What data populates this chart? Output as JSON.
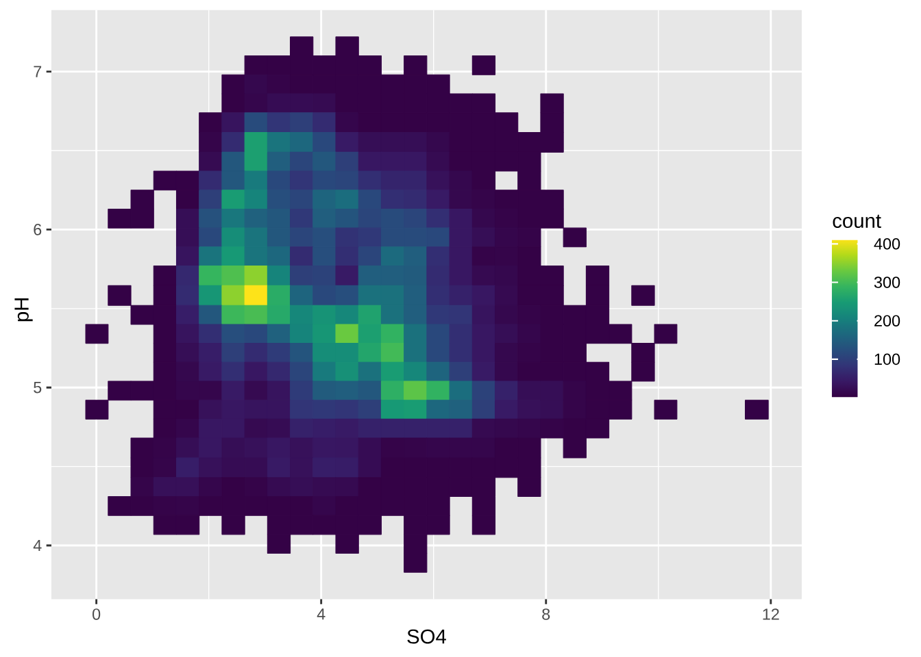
{
  "chart_data": {
    "type": "heatmap",
    "xlabel": "SO4",
    "ylabel": "pH",
    "clabel": "count",
    "x": [
      0.01,
      0.41,
      0.82,
      1.22,
      1.63,
      2.03,
      2.44,
      2.84,
      3.25,
      3.65,
      4.06,
      4.46,
      4.87,
      5.27,
      5.68,
      6.08,
      6.49,
      6.89,
      7.3,
      7.7,
      8.11,
      8.51,
      8.92,
      9.32,
      9.73,
      10.13,
      10.53,
      10.94,
      11.34,
      11.75
    ],
    "y": [
      7.16,
      7.04,
      6.92,
      6.8,
      6.68,
      6.55,
      6.43,
      6.31,
      6.19,
      6.07,
      5.95,
      5.83,
      5.71,
      5.58,
      5.46,
      5.34,
      5.22,
      5.1,
      4.98,
      4.86,
      4.74,
      4.62,
      4.49,
      4.37,
      4.25,
      4.13,
      4.01,
      3.89
    ],
    "cells": [
      [
        null,
        null,
        null,
        null,
        null,
        null,
        null,
        null,
        null,
        5,
        null,
        5,
        null,
        null,
        null,
        null,
        null,
        null,
        null,
        null,
        null,
        null,
        null,
        null,
        null,
        null,
        null,
        null,
        null,
        null
      ],
      [
        null,
        null,
        null,
        null,
        null,
        null,
        null,
        5,
        5,
        5,
        5,
        5,
        5,
        null,
        5,
        null,
        null,
        5,
        null,
        null,
        null,
        null,
        null,
        null,
        null,
        null,
        null,
        null,
        null,
        null
      ],
      [
        null,
        null,
        null,
        null,
        null,
        null,
        5,
        15,
        8,
        5,
        5,
        5,
        5,
        5,
        5,
        5,
        null,
        null,
        null,
        null,
        null,
        null,
        null,
        null,
        null,
        null,
        null,
        null,
        null,
        null
      ],
      [
        null,
        null,
        null,
        null,
        null,
        null,
        5,
        12,
        22,
        22,
        20,
        5,
        5,
        5,
        5,
        5,
        5,
        5,
        null,
        null,
        5,
        null,
        null,
        null,
        null,
        null,
        null,
        null,
        null,
        null
      ],
      [
        null,
        null,
        null,
        null,
        null,
        5,
        35,
        120,
        85,
        100,
        70,
        12,
        5,
        5,
        5,
        5,
        5,
        5,
        5,
        null,
        5,
        null,
        null,
        null,
        null,
        null,
        null,
        null,
        null,
        null
      ],
      [
        null,
        null,
        null,
        null,
        null,
        10,
        70,
        255,
        185,
        165,
        115,
        45,
        25,
        25,
        25,
        15,
        5,
        5,
        5,
        5,
        5,
        null,
        null,
        null,
        null,
        null,
        null,
        null,
        null,
        null
      ],
      [
        null,
        null,
        null,
        null,
        null,
        20,
        140,
        255,
        150,
        110,
        140,
        100,
        40,
        40,
        40,
        20,
        5,
        5,
        5,
        5,
        null,
        null,
        null,
        null,
        null,
        null,
        null,
        null,
        null,
        null
      ],
      [
        null,
        null,
        null,
        5,
        5,
        70,
        140,
        195,
        115,
        85,
        115,
        110,
        75,
        60,
        60,
        30,
        15,
        5,
        null,
        5,
        null,
        null,
        null,
        null,
        null,
        null,
        null,
        null,
        null,
        null
      ],
      [
        null,
        null,
        5,
        null,
        5,
        100,
        250,
        210,
        125,
        110,
        160,
        175,
        115,
        75,
        70,
        45,
        15,
        10,
        5,
        5,
        5,
        null,
        null,
        null,
        null,
        null,
        null,
        null,
        null,
        null
      ],
      [
        null,
        5,
        5,
        null,
        25,
        130,
        190,
        155,
        140,
        90,
        150,
        135,
        110,
        120,
        110,
        75,
        40,
        15,
        8,
        5,
        5,
        null,
        null,
        null,
        null,
        null,
        null,
        null,
        null,
        null
      ],
      [
        null,
        null,
        null,
        null,
        25,
        115,
        225,
        185,
        140,
        110,
        125,
        80,
        90,
        120,
        120,
        115,
        40,
        25,
        12,
        8,
        null,
        5,
        null,
        null,
        null,
        null,
        null,
        null,
        null,
        null
      ],
      [
        null,
        null,
        null,
        null,
        35,
        185,
        245,
        185,
        165,
        70,
        125,
        75,
        110,
        170,
        150,
        75,
        40,
        8,
        10,
        5,
        null,
        null,
        null,
        null,
        null,
        null,
        null,
        null,
        null,
        null
      ],
      [
        null,
        null,
        null,
        5,
        65,
        290,
        310,
        350,
        210,
        100,
        105,
        45,
        150,
        150,
        145,
        70,
        40,
        18,
        15,
        5,
        5,
        null,
        5,
        null,
        null,
        null,
        null,
        null,
        null,
        null
      ],
      [
        null,
        5,
        null,
        5,
        70,
        240,
        350,
        412,
        275,
        160,
        115,
        125,
        180,
        180,
        150,
        75,
        55,
        40,
        18,
        5,
        5,
        null,
        5,
        null,
        5,
        null,
        null,
        null,
        null,
        null
      ],
      [
        null,
        null,
        5,
        5,
        50,
        140,
        295,
        305,
        270,
        215,
        235,
        215,
        260,
        180,
        150,
        90,
        85,
        35,
        15,
        8,
        5,
        5,
        5,
        null,
        null,
        null,
        null,
        null,
        null,
        null
      ],
      [
        5,
        null,
        null,
        5,
        35,
        75,
        125,
        115,
        155,
        210,
        240,
        330,
        255,
        285,
        180,
        115,
        75,
        40,
        25,
        12,
        5,
        5,
        5,
        5,
        null,
        5,
        null,
        null,
        null,
        null
      ],
      [
        null,
        null,
        null,
        5,
        25,
        50,
        100,
        70,
        95,
        135,
        225,
        225,
        265,
        300,
        180,
        115,
        75,
        40,
        15,
        8,
        5,
        5,
        null,
        null,
        5,
        null,
        null,
        null,
        null,
        null
      ],
      [
        null,
        null,
        null,
        5,
        15,
        45,
        75,
        40,
        65,
        110,
        195,
        230,
        180,
        250,
        215,
        160,
        100,
        45,
        15,
        5,
        5,
        5,
        5,
        null,
        5,
        null,
        null,
        null,
        null,
        null
      ],
      [
        null,
        5,
        5,
        5,
        12,
        12,
        45,
        18,
        35,
        95,
        145,
        150,
        140,
        280,
        320,
        285,
        175,
        105,
        55,
        25,
        25,
        10,
        5,
        5,
        null,
        null,
        null,
        null,
        null,
        null
      ],
      [
        5,
        null,
        null,
        5,
        5,
        30,
        40,
        35,
        35,
        85,
        90,
        85,
        100,
        245,
        250,
        165,
        155,
        100,
        45,
        28,
        25,
        10,
        5,
        5,
        null,
        5,
        null,
        null,
        null,
        5
      ],
      [
        null,
        null,
        null,
        5,
        12,
        40,
        40,
        18,
        22,
        55,
        50,
        45,
        55,
        55,
        55,
        55,
        55,
        18,
        15,
        12,
        8,
        5,
        5,
        null,
        null,
        null,
        null,
        null,
        null,
        null
      ],
      [
        null,
        null,
        5,
        8,
        25,
        40,
        25,
        30,
        40,
        30,
        40,
        38,
        22,
        8,
        10,
        12,
        12,
        12,
        5,
        5,
        null,
        5,
        null,
        null,
        null,
        null,
        null,
        null,
        null,
        null
      ],
      [
        null,
        null,
        5,
        10,
        50,
        30,
        22,
        22,
        45,
        30,
        50,
        48,
        22,
        5,
        5,
        5,
        5,
        5,
        5,
        5,
        null,
        null,
        null,
        null,
        null,
        null,
        null,
        null,
        null,
        null
      ],
      [
        null,
        null,
        10,
        28,
        28,
        12,
        5,
        8,
        20,
        25,
        20,
        18,
        5,
        5,
        5,
        5,
        5,
        5,
        null,
        5,
        null,
        null,
        null,
        null,
        null,
        null,
        null,
        null,
        null,
        null
      ],
      [
        null,
        5,
        5,
        8,
        10,
        5,
        5,
        5,
        5,
        5,
        12,
        5,
        5,
        5,
        5,
        5,
        null,
        5,
        null,
        null,
        null,
        null,
        null,
        null,
        null,
        null,
        null,
        null,
        null,
        null
      ],
      [
        null,
        null,
        null,
        5,
        5,
        null,
        5,
        null,
        5,
        5,
        5,
        5,
        5,
        null,
        5,
        5,
        null,
        5,
        null,
        null,
        null,
        null,
        null,
        null,
        null,
        null,
        null,
        null,
        null,
        null
      ],
      [
        null,
        null,
        null,
        null,
        null,
        null,
        null,
        null,
        5,
        null,
        null,
        5,
        null,
        null,
        5,
        null,
        null,
        null,
        null,
        null,
        null,
        null,
        null,
        null,
        null,
        null,
        null,
        null,
        null,
        null
      ],
      [
        null,
        null,
        null,
        null,
        null,
        null,
        null,
        null,
        null,
        null,
        null,
        null,
        null,
        null,
        5,
        null,
        null,
        null,
        null,
        null,
        null,
        null,
        null,
        null,
        null,
        null,
        null,
        null,
        null,
        null
      ]
    ],
    "clim": [
      1,
      412
    ],
    "cticks": [
      100,
      200,
      300,
      400
    ],
    "xlim": [
      -0.8,
      12.55
    ],
    "ylim": [
      3.66,
      7.39
    ],
    "xticks": [
      0,
      4,
      8,
      12
    ],
    "yticks": [
      4,
      5,
      6,
      7
    ],
    "grid": true
  }
}
